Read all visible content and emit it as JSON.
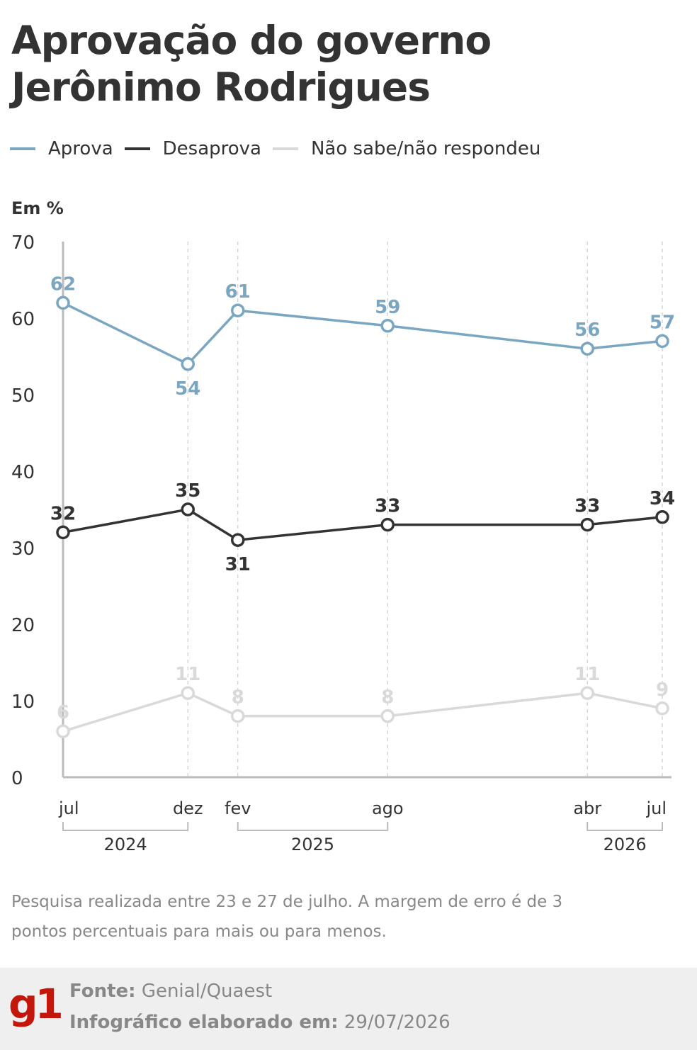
{
  "header": {
    "title_line1": "Aprovação do governo",
    "title_line2": "Jerônimo Rodrigues"
  },
  "legend": [
    {
      "label": "Aprova",
      "color": "#7aa6c2"
    },
    {
      "label": "Desaprova",
      "color": "#333333"
    },
    {
      "label": "Não sabe/não respondeu",
      "color": "#d9d9d9"
    }
  ],
  "unit_label": "Em %",
  "chart_data": {
    "type": "line",
    "x": [
      "jul 2024",
      "dez 2024",
      "fev 2025",
      "ago 2025",
      "abr 2026",
      "jul 2026"
    ],
    "x_tick_labels": [
      "jul",
      "dez",
      "fev",
      "ago",
      "abr",
      "jul"
    ],
    "x_month_index": [
      0,
      5,
      7,
      13,
      21,
      24
    ],
    "year_groups": [
      {
        "label": "2024",
        "from": 0,
        "to": 1
      },
      {
        "label": "2025",
        "from": 2,
        "to": 3
      },
      {
        "label": "2026",
        "from": 4,
        "to": 5
      }
    ],
    "series": [
      {
        "name": "Aprova",
        "color": "#7aa6c2",
        "values": [
          62,
          54,
          61,
          59,
          56,
          57
        ],
        "label_pos": [
          "above",
          "below",
          "above",
          "above",
          "above",
          "above"
        ]
      },
      {
        "name": "Desaprova",
        "color": "#333333",
        "values": [
          32,
          35,
          31,
          33,
          33,
          34
        ],
        "label_pos": [
          "above",
          "above",
          "below",
          "above",
          "above",
          "above"
        ]
      },
      {
        "name": "Não sabe/não respondeu",
        "color": "#d9d9d9",
        "values": [
          6,
          11,
          8,
          8,
          11,
          9
        ],
        "label_pos": [
          "above",
          "above",
          "above",
          "above",
          "above",
          "above"
        ]
      }
    ],
    "ylim": [
      0,
      70
    ],
    "y_ticks": [
      0,
      10,
      20,
      30,
      40,
      50,
      60,
      70
    ],
    "grid": "vertical dashed lines at each survey date"
  },
  "note": "Pesquisa realizada entre 23 e 27 de julho. A margem de erro é de 3 pontos percentuais para mais ou para menos.",
  "footer": {
    "logo": "g1",
    "source_label": "Fonte:",
    "source_value": "Genial/Quaest",
    "date_label": "Infográfico elaborado em:",
    "date_value": "29/07/2026"
  }
}
